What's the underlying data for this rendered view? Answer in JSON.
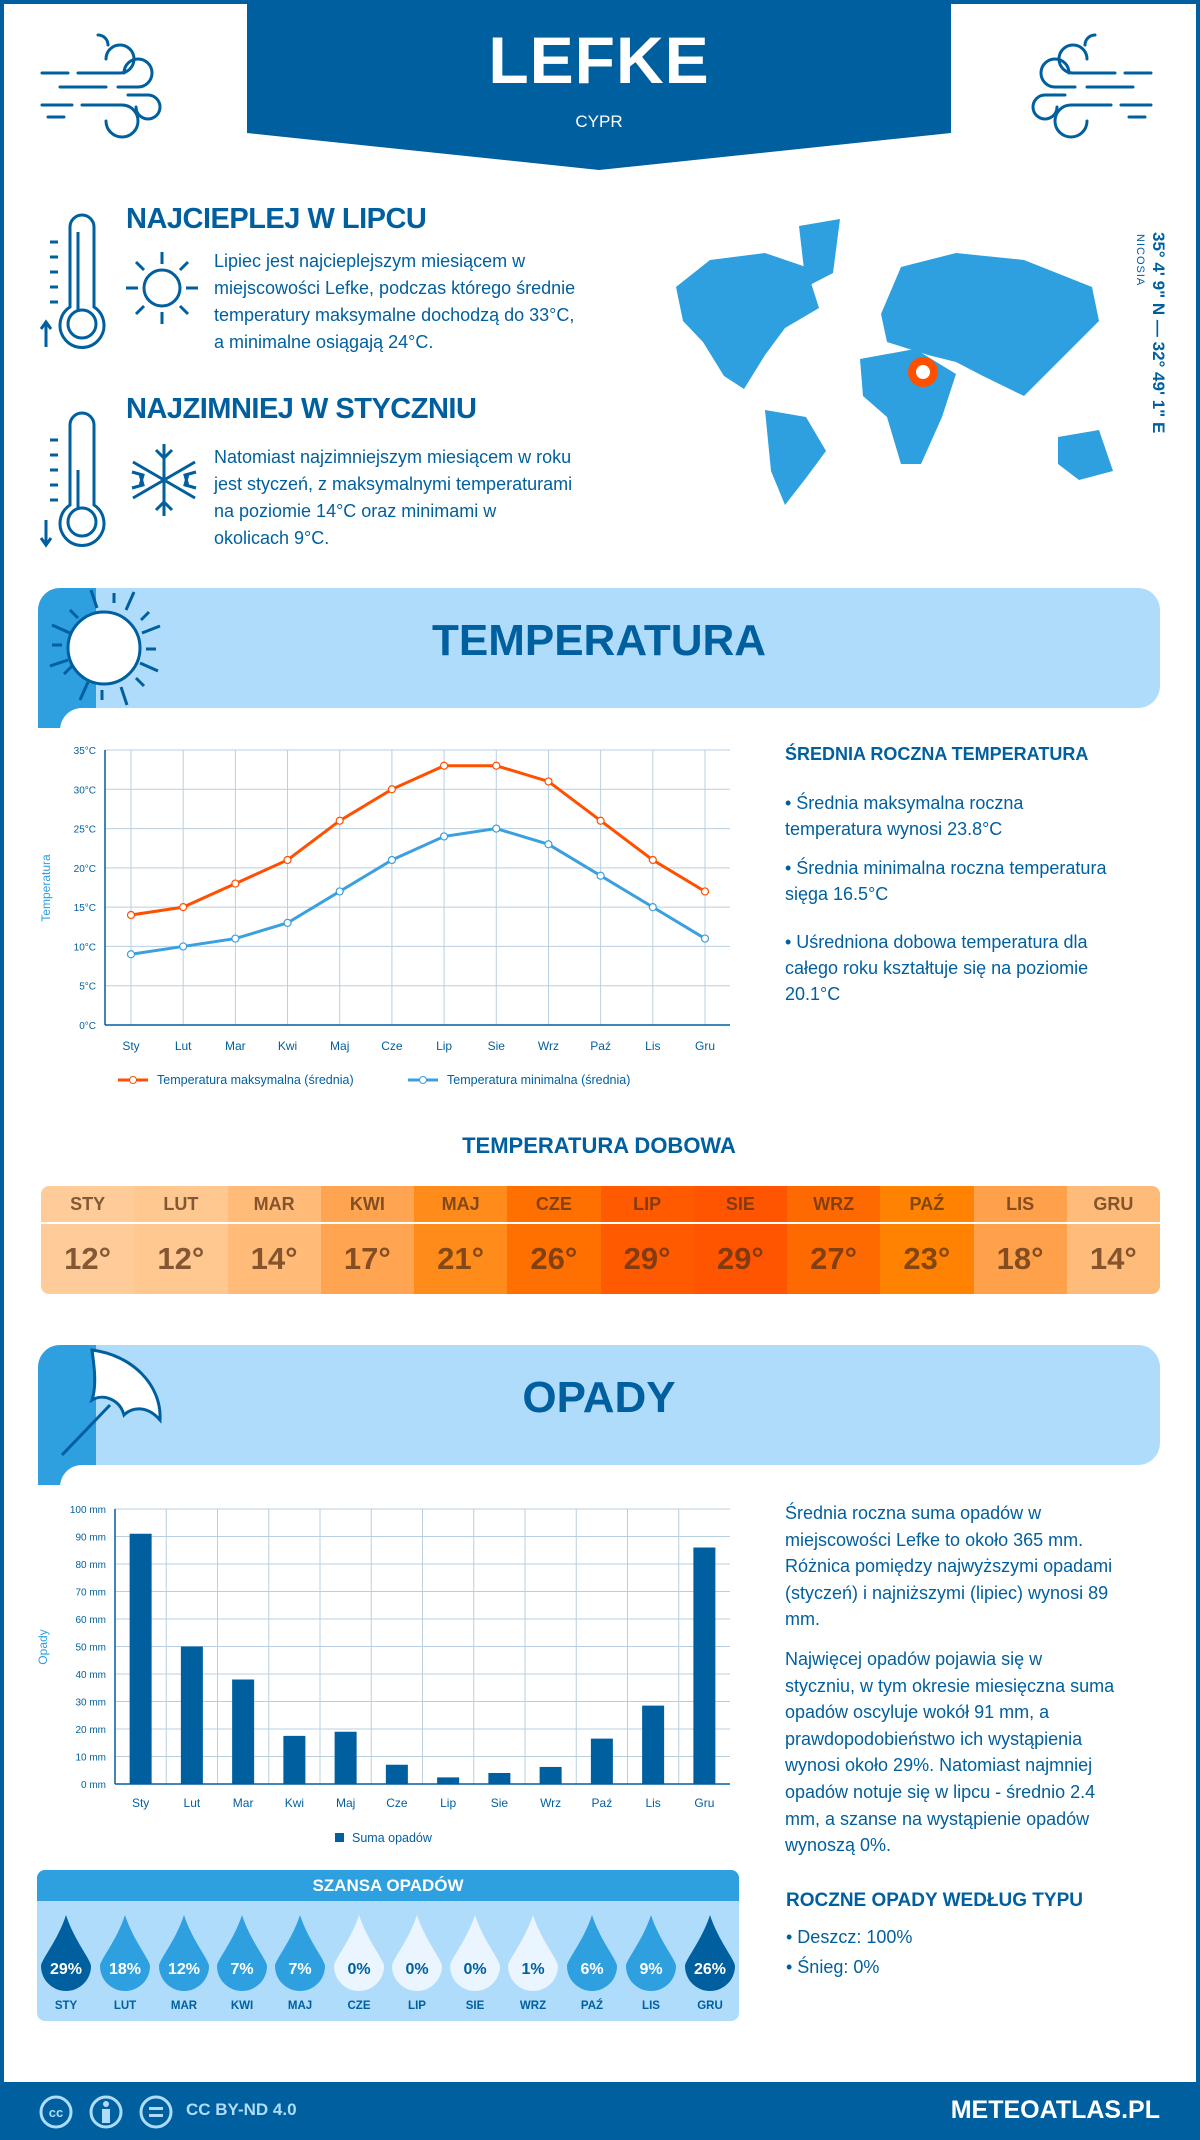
{
  "header": {
    "title": "LEFKE",
    "country": "CYPR"
  },
  "warmest": {
    "heading": "NAJCIEPLEJ W LIPCU",
    "lines": [
      "Lipiec jest najcieplejszym miesiącem w",
      "miejscowości Lefke, podczas którego średnie",
      "temperatury maksymalne dochodzą do 33°C,",
      "a minimalne osiągają 24°C."
    ]
  },
  "coldest": {
    "heading": "NAJZIMNIEJ W STYCZNIU",
    "lines": [
      "Natomiast najzimniejszym miesiącem w roku",
      "jest styczeń, z maksymalnymi temperaturami",
      "na poziomie 14°C oraz minimami w",
      "okolicach 9°C."
    ]
  },
  "map": {
    "coordinates": "35° 4' 9\" N — 32° 49' 1\" E",
    "capital": "NICOSIA",
    "marker_color": "#ff5000",
    "land_color": "#2e9fdf"
  },
  "temperature": {
    "section_title": "TEMPERATURA",
    "summary_heading": "ŚREDNIA ROCZNA TEMPERATURA",
    "bullets": [
      [
        "• Średnia maksymalna roczna",
        "temperatura wynosi 23.8°C"
      ],
      [
        "• Średnia minimalna roczna temperatura",
        "sięga 16.5°C"
      ],
      [
        "• Uśredniona dobowa temperatura dla",
        "całego roku kształtuje się na poziomie",
        "20.1°C"
      ]
    ],
    "daily_heading": "TEMPERATURA DOBOWA",
    "daily": [
      {
        "month": "STY",
        "value": "12°",
        "color": "#ffcc99"
      },
      {
        "month": "LUT",
        "value": "12°",
        "color": "#ffc890"
      },
      {
        "month": "MAR",
        "value": "14°",
        "color": "#ffbb77"
      },
      {
        "month": "KWI",
        "value": "17°",
        "color": "#ffa450"
      },
      {
        "month": "MAJ",
        "value": "21°",
        "color": "#ff8c1a"
      },
      {
        "month": "CZE",
        "value": "26°",
        "color": "#ff7000"
      },
      {
        "month": "LIP",
        "value": "29°",
        "color": "#ff5a00"
      },
      {
        "month": "SIE",
        "value": "29°",
        "color": "#ff5500"
      },
      {
        "month": "WRZ",
        "value": "27°",
        "color": "#ff6a00"
      },
      {
        "month": "PAŹ",
        "value": "23°",
        "color": "#ff8200"
      },
      {
        "month": "LIS",
        "value": "18°",
        "color": "#ffa14a"
      },
      {
        "month": "GRU",
        "value": "14°",
        "color": "#ffbb7a"
      }
    ]
  },
  "precipitation": {
    "section_title": "OPADY",
    "paragraph1": [
      "Średnia roczna suma opadów w",
      "miejscowości Lefke to około 365 mm.",
      "Różnica pomiędzy najwyższymi opadami",
      "(styczeń) i najniższymi (lipiec) wynosi 89",
      "mm."
    ],
    "paragraph2": [
      "Najwięcej opadów pojawia się w",
      "styczniu, w tym okresie miesięczna suma",
      "opadów oscyluje wokół 91 mm, a",
      "prawdopodobieństwo ich wystąpienia",
      "wynosi około 29%. Natomiast najmniej",
      "opadów notuje się w lipcu - średnio 2.4",
      "mm, a szanse na wystąpienie opadów",
      "wynoszą 0%."
    ],
    "chance_heading": "SZANSA OPADÓW",
    "chance": [
      {
        "month": "STY",
        "value": "29%"
      },
      {
        "month": "LUT",
        "value": "18%"
      },
      {
        "month": "MAR",
        "value": "12%"
      },
      {
        "month": "KWI",
        "value": "7%"
      },
      {
        "month": "MAJ",
        "value": "7%"
      },
      {
        "month": "CZE",
        "value": "0%"
      },
      {
        "month": "LIP",
        "value": "0%"
      },
      {
        "month": "SIE",
        "value": "0%"
      },
      {
        "month": "WRZ",
        "value": "1%"
      },
      {
        "month": "PAŹ",
        "value": "6%"
      },
      {
        "month": "LIS",
        "value": "9%"
      },
      {
        "month": "GRU",
        "value": "26%"
      }
    ],
    "type_heading": "ROCZNE OPADY WEDŁUG TYPU",
    "types": [
      "• Deszcz: 100%",
      "• Śnieg: 0%"
    ]
  },
  "chart_data": [
    {
      "type": "line",
      "categories": [
        "Sty",
        "Lut",
        "Mar",
        "Kwi",
        "Maj",
        "Cze",
        "Lip",
        "Sie",
        "Wrz",
        "Paź",
        "Lis",
        "Gru"
      ],
      "ylabel": "Temperatura",
      "ylim": [
        0,
        35
      ],
      "yticks": [
        "0°C",
        "5°C",
        "10°C",
        "15°C",
        "20°C",
        "25°C",
        "30°C",
        "35°C"
      ],
      "grid": true,
      "legend": "bottom",
      "series": [
        {
          "name": "Temperatura maksymalna (średnia)",
          "color": "#ff5000",
          "values": [
            14,
            15,
            18,
            21,
            26,
            30,
            33,
            33,
            31,
            26,
            21,
            17
          ]
        },
        {
          "name": "Temperatura minimalna (średnia)",
          "color": "#3aa0e0",
          "values": [
            9,
            10,
            11,
            13,
            17,
            21,
            24,
            25,
            23,
            19,
            15,
            11
          ]
        }
      ]
    },
    {
      "type": "bar",
      "categories": [
        "Sty",
        "Lut",
        "Mar",
        "Kwi",
        "Maj",
        "Cze",
        "Lip",
        "Sie",
        "Wrz",
        "Paź",
        "Lis",
        "Gru"
      ],
      "ylabel": "Opady",
      "ylim": [
        0,
        100
      ],
      "yticks": [
        "0 mm",
        "10 mm",
        "20 mm",
        "30 mm",
        "40 mm",
        "50 mm",
        "60 mm",
        "70 mm",
        "80 mm",
        "90 mm",
        "100 mm"
      ],
      "grid": true,
      "legend": "bottom",
      "series": [
        {
          "name": "Suma opadów",
          "color": "#005f9e",
          "values": [
            91,
            50,
            38,
            17.5,
            19,
            7,
            2.4,
            4,
            6.2,
            16.5,
            28.5,
            86
          ]
        }
      ]
    }
  ],
  "footer": {
    "license": "CC BY-ND 4.0",
    "site": "METEOATLAS.PL"
  }
}
